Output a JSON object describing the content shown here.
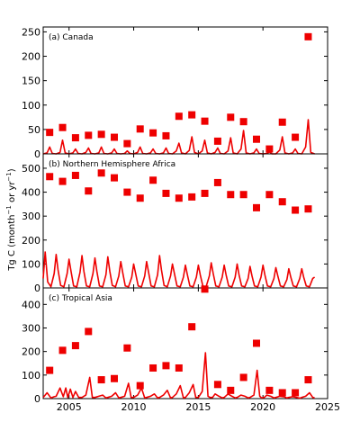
{
  "chart_data": {
    "type": "line",
    "ylabel_prefix": "Tg C (month",
    "ylabel_sup1": "−1",
    "ylabel_mid": " or yr",
    "ylabel_sup2": "−1",
    "ylabel_suffix": ")",
    "x_ticks": [
      2005,
      2010,
      2015,
      2020,
      2025
    ],
    "xlim": [
      2003,
      2025
    ],
    "series_color": "#ee0000",
    "panels": [
      {
        "label": "(a) Canada",
        "ylim": [
          0,
          260
        ],
        "yticks": [
          0,
          50,
          100,
          150,
          200,
          250
        ],
        "annual": {
          "x": [
            2003.5,
            2004.5,
            2005.5,
            2006.5,
            2007.5,
            2008.5,
            2009.5,
            2010.5,
            2011.5,
            2012.5,
            2013.5,
            2014.5,
            2015.5,
            2016.5,
            2017.5,
            2018.5,
            2019.5,
            2020.5,
            2021.5,
            2022.5,
            2023.5
          ],
          "y": [
            44,
            54,
            33,
            38,
            40,
            34,
            21,
            51,
            43,
            37,
            77,
            80,
            67,
            26,
            75,
            66,
            30,
            10,
            65,
            34,
            240
          ]
        },
        "monthly": {
          "x": [
            2003,
            2003.3,
            2003.5,
            2003.7,
            2004.0,
            2004.3,
            2004.5,
            2004.7,
            2005.0,
            2005.3,
            2005.5,
            2005.7,
            2006.0,
            2006.3,
            2006.5,
            2006.7,
            2007.0,
            2007.3,
            2007.5,
            2007.7,
            2008.0,
            2008.3,
            2008.5,
            2008.7,
            2009.0,
            2009.3,
            2009.5,
            2009.7,
            2010.0,
            2010.3,
            2010.5,
            2010.7,
            2011.0,
            2011.3,
            2011.5,
            2011.7,
            2012.0,
            2012.3,
            2012.5,
            2012.7,
            2013.0,
            2013.3,
            2013.5,
            2013.7,
            2014.0,
            2014.3,
            2014.5,
            2014.7,
            2015.0,
            2015.3,
            2015.5,
            2015.7,
            2016.0,
            2016.3,
            2016.5,
            2016.7,
            2017.0,
            2017.3,
            2017.5,
            2017.7,
            2018.0,
            2018.3,
            2018.5,
            2018.7,
            2019.0,
            2019.3,
            2019.5,
            2019.7,
            2020.0,
            2020.3,
            2020.5,
            2020.7,
            2021.0,
            2021.3,
            2021.5,
            2021.7,
            2022.0,
            2022.3,
            2022.5,
            2022.7,
            2023.0,
            2023.3,
            2023.5,
            2023.7,
            2024.0
          ],
          "y": [
            0,
            2,
            14,
            1,
            0,
            3,
            28,
            2,
            0,
            2,
            10,
            1,
            0,
            3,
            12,
            1,
            0,
            2,
            14,
            1,
            0,
            2,
            10,
            1,
            0,
            1,
            6,
            1,
            0,
            3,
            14,
            1,
            0,
            2,
            10,
            1,
            0,
            2,
            12,
            1,
            0,
            6,
            22,
            2,
            0,
            7,
            35,
            3,
            0,
            6,
            28,
            2,
            0,
            3,
            12,
            1,
            0,
            6,
            33,
            2,
            0,
            10,
            48,
            2,
            0,
            2,
            10,
            1,
            0,
            1,
            4,
            0,
            0,
            8,
            35,
            2,
            0,
            2,
            10,
            1,
            0,
            14,
            70,
            3,
            0
          ]
        }
      },
      {
        "label": "(b) Northern Hemisphere Africa",
        "ylim": [
          0,
          560
        ],
        "yticks": [
          0,
          100,
          200,
          300,
          400,
          500
        ],
        "annual": {
          "x": [
            2003.5,
            2004.5,
            2005.5,
            2006.5,
            2007.5,
            2008.5,
            2009.5,
            2010.5,
            2011.5,
            2012.5,
            2013.5,
            2014.5,
            2015.5,
            2016.5,
            2017.5,
            2018.5,
            2019.5,
            2020.5,
            2021.5,
            2022.5,
            2023.5
          ],
          "y": [
            465,
            445,
            470,
            405,
            480,
            460,
            400,
            375,
            450,
            395,
            375,
            380,
            395,
            440,
            390,
            390,
            335,
            390,
            360,
            325,
            330
          ]
        },
        "monthly": {
          "x": [
            2003,
            2003.15,
            2003.35,
            2003.6,
            2003.85,
            2004.0,
            2004.15,
            2004.35,
            2004.6,
            2004.85,
            2005.0,
            2005.15,
            2005.35,
            2005.6,
            2005.85,
            2006.0,
            2006.15,
            2006.35,
            2006.6,
            2006.85,
            2007.0,
            2007.15,
            2007.35,
            2007.6,
            2007.85,
            2008.0,
            2008.15,
            2008.35,
            2008.6,
            2008.85,
            2009.0,
            2009.15,
            2009.35,
            2009.6,
            2009.85,
            2010.0,
            2010.15,
            2010.35,
            2010.6,
            2010.85,
            2011.0,
            2011.15,
            2011.35,
            2011.6,
            2011.85,
            2012.0,
            2012.15,
            2012.35,
            2012.6,
            2012.85,
            2013.0,
            2013.15,
            2013.35,
            2013.6,
            2013.85,
            2014.0,
            2014.15,
            2014.35,
            2014.6,
            2014.85,
            2015.0,
            2015.15,
            2015.35,
            2015.6,
            2015.85,
            2016.0,
            2016.15,
            2016.35,
            2016.6,
            2016.85,
            2017.0,
            2017.15,
            2017.35,
            2017.6,
            2017.85,
            2018.0,
            2018.15,
            2018.35,
            2018.6,
            2018.85,
            2019.0,
            2019.15,
            2019.35,
            2019.6,
            2019.85,
            2020.0,
            2020.15,
            2020.35,
            2020.6,
            2020.85,
            2021.0,
            2021.15,
            2021.35,
            2021.6,
            2021.85,
            2022.0,
            2022.15,
            2022.35,
            2022.6,
            2022.85,
            2023.0,
            2023.15,
            2023.35,
            2023.6,
            2023.85,
            2024.0
          ],
          "y": [
            40,
            150,
            25,
            5,
            60,
            140,
            75,
            10,
            5,
            60,
            120,
            70,
            8,
            5,
            65,
            135,
            70,
            8,
            5,
            60,
            125,
            70,
            8,
            5,
            55,
            130,
            70,
            10,
            5,
            50,
            110,
            65,
            8,
            5,
            45,
            100,
            60,
            8,
            5,
            50,
            110,
            65,
            8,
            5,
            55,
            135,
            75,
            10,
            5,
            50,
            100,
            60,
            8,
            5,
            45,
            95,
            55,
            8,
            5,
            45,
            95,
            55,
            8,
            5,
            50,
            105,
            60,
            8,
            5,
            45,
            95,
            55,
            8,
            5,
            45,
            100,
            55,
            8,
            5,
            40,
            90,
            50,
            8,
            5,
            45,
            95,
            55,
            8,
            5,
            40,
            85,
            50,
            8,
            5,
            35,
            80,
            45,
            8,
            5,
            40,
            80,
            45,
            8,
            5,
            40,
            45
          ]
        }
      },
      {
        "label": "(c) Tropical Asia",
        "ylim": [
          0,
          470
        ],
        "yticks": [
          0,
          100,
          200,
          300,
          400
        ],
        "annual": {
          "x": [
            2003.5,
            2004.5,
            2005.5,
            2006.5,
            2007.5,
            2008.5,
            2009.5,
            2010.5,
            2011.5,
            2012.5,
            2013.5,
            2014.5,
            2015.5,
            2016.5,
            2017.5,
            2018.5,
            2019.5,
            2020.5,
            2021.5,
            2022.5,
            2023.5
          ],
          "y": [
            120,
            205,
            225,
            285,
            80,
            85,
            215,
            55,
            130,
            140,
            130,
            305,
            465,
            60,
            35,
            90,
            235,
            35,
            25,
            25,
            80
          ]
        },
        "monthly": {
          "x": [
            2003,
            2003.3,
            2003.6,
            2003.85,
            2004.0,
            2004.3,
            2004.55,
            2004.75,
            2004.9,
            2005.1,
            2005.3,
            2005.5,
            2005.75,
            2006.0,
            2006.3,
            2006.6,
            2006.8,
            2007.0,
            2007.3,
            2007.6,
            2007.85,
            2008.0,
            2008.3,
            2008.6,
            2008.85,
            2009.0,
            2009.3,
            2009.6,
            2009.8,
            2010.0,
            2010.3,
            2010.6,
            2010.85,
            2011.0,
            2011.3,
            2011.6,
            2011.85,
            2012.0,
            2012.3,
            2012.6,
            2012.85,
            2013.0,
            2013.3,
            2013.6,
            2013.85,
            2014.0,
            2014.3,
            2014.6,
            2014.8,
            2015.0,
            2015.3,
            2015.55,
            2015.75,
            2015.9,
            2016.1,
            2016.3,
            2016.6,
            2016.85,
            2017.0,
            2017.3,
            2017.6,
            2017.85,
            2018.0,
            2018.3,
            2018.6,
            2018.85,
            2019.0,
            2019.3,
            2019.55,
            2019.75,
            2019.9,
            2020.1,
            2020.3,
            2020.6,
            2020.85,
            2021.0,
            2021.3,
            2021.6,
            2021.85,
            2022.0,
            2022.3,
            2022.6,
            2022.85,
            2023.0,
            2023.3,
            2023.6,
            2023.85,
            2024.0
          ],
          "y": [
            5,
            25,
            3,
            8,
            10,
            45,
            8,
            45,
            5,
            40,
            5,
            30,
            5,
            5,
            15,
            90,
            5,
            5,
            10,
            15,
            3,
            5,
            10,
            25,
            3,
            5,
            10,
            65,
            5,
            5,
            15,
            45,
            3,
            5,
            10,
            20,
            3,
            5,
            15,
            35,
            3,
            5,
            20,
            55,
            3,
            5,
            25,
            60,
            5,
            5,
            30,
            195,
            10,
            5,
            5,
            20,
            10,
            3,
            5,
            20,
            10,
            3,
            5,
            15,
            10,
            3,
            5,
            15,
            120,
            10,
            3,
            5,
            15,
            10,
            3,
            5,
            10,
            8,
            3,
            5,
            8,
            5,
            2,
            5,
            10,
            25,
            5,
            3
          ]
        }
      }
    ]
  }
}
